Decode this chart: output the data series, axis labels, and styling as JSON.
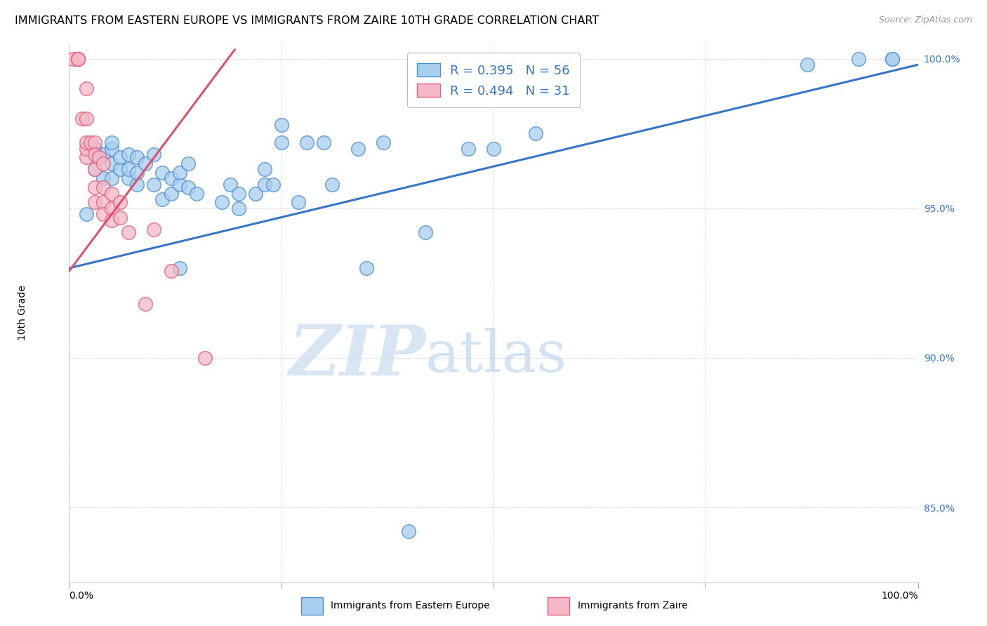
{
  "title": "IMMIGRANTS FROM EASTERN EUROPE VS IMMIGRANTS FROM ZAIRE 10TH GRADE CORRELATION CHART",
  "source": "Source: ZipAtlas.com",
  "ylabel": "10th Grade",
  "legend_blue_r": "R = 0.395",
  "legend_blue_n": "N = 56",
  "legend_pink_r": "R = 0.494",
  "legend_pink_n": "N = 31",
  "legend_label_blue": "Immigrants from Eastern Europe",
  "legend_label_pink": "Immigrants from Zaire",
  "blue_color": "#A8CEF0",
  "pink_color": "#F5B8C8",
  "blue_edge_color": "#5090D0",
  "pink_edge_color": "#E06080",
  "blue_line_color": "#3676C8",
  "pink_line_color": "#E05070",
  "x_range": [
    0.0,
    1.0
  ],
  "y_range": [
    0.825,
    1.005
  ],
  "y_ticks": [
    0.85,
    0.9,
    0.95,
    1.0
  ],
  "y_tick_labels": [
    "85.0%",
    "90.0%",
    "95.0%",
    "100.0%"
  ],
  "x_ticks": [
    0.0,
    0.25,
    0.5,
    0.75,
    1.0
  ],
  "x_tick_labels": [
    "0.0%",
    "",
    "",
    "",
    "100.0%"
  ],
  "blue_scatter_x": [
    0.02,
    0.03,
    0.03,
    0.04,
    0.04,
    0.05,
    0.05,
    0.05,
    0.05,
    0.06,
    0.06,
    0.07,
    0.07,
    0.07,
    0.08,
    0.08,
    0.08,
    0.09,
    0.1,
    0.1,
    0.11,
    0.11,
    0.12,
    0.12,
    0.13,
    0.13,
    0.14,
    0.14,
    0.15,
    0.18,
    0.19,
    0.2,
    0.2,
    0.22,
    0.23,
    0.23,
    0.24,
    0.25,
    0.25,
    0.27,
    0.28,
    0.3,
    0.31,
    0.34,
    0.35,
    0.37,
    0.4,
    0.42,
    0.47,
    0.5,
    0.55,
    0.13,
    0.87,
    0.93,
    0.97,
    0.97
  ],
  "blue_scatter_y": [
    0.948,
    0.963,
    0.97,
    0.96,
    0.968,
    0.96,
    0.965,
    0.97,
    0.972,
    0.963,
    0.967,
    0.96,
    0.963,
    0.968,
    0.958,
    0.962,
    0.967,
    0.965,
    0.958,
    0.968,
    0.953,
    0.962,
    0.955,
    0.96,
    0.958,
    0.962,
    0.957,
    0.965,
    0.955,
    0.952,
    0.958,
    0.95,
    0.955,
    0.955,
    0.958,
    0.963,
    0.958,
    0.972,
    0.978,
    0.952,
    0.972,
    0.972,
    0.958,
    0.97,
    0.93,
    0.972,
    0.842,
    0.942,
    0.97,
    0.97,
    0.975,
    0.93,
    0.998,
    1.0,
    1.0,
    1.0
  ],
  "pink_scatter_x": [
    0.005,
    0.01,
    0.01,
    0.01,
    0.015,
    0.02,
    0.02,
    0.02,
    0.02,
    0.02,
    0.025,
    0.03,
    0.03,
    0.03,
    0.03,
    0.03,
    0.035,
    0.04,
    0.04,
    0.04,
    0.04,
    0.05,
    0.05,
    0.05,
    0.06,
    0.06,
    0.07,
    0.09,
    0.1,
    0.12,
    0.16
  ],
  "pink_scatter_y": [
    1.0,
    1.0,
    1.0,
    1.0,
    0.98,
    0.98,
    0.99,
    0.967,
    0.97,
    0.972,
    0.972,
    0.972,
    0.968,
    0.963,
    0.957,
    0.952,
    0.967,
    0.965,
    0.957,
    0.952,
    0.948,
    0.955,
    0.95,
    0.946,
    0.952,
    0.947,
    0.942,
    0.918,
    0.943,
    0.929,
    0.9
  ],
  "blue_trend_x": [
    0.0,
    1.0
  ],
  "blue_trend_y": [
    0.93,
    0.998
  ],
  "pink_trend_x": [
    0.0,
    0.195
  ],
  "pink_trend_y": [
    0.929,
    1.003
  ],
  "watermark_zip": "ZIP",
  "watermark_atlas": "atlas",
  "grid_color": "#DDDDDD",
  "title_fontsize": 11.5,
  "ylabel_fontsize": 10,
  "tick_color": "#3676C8",
  "tick_fontsize": 10
}
